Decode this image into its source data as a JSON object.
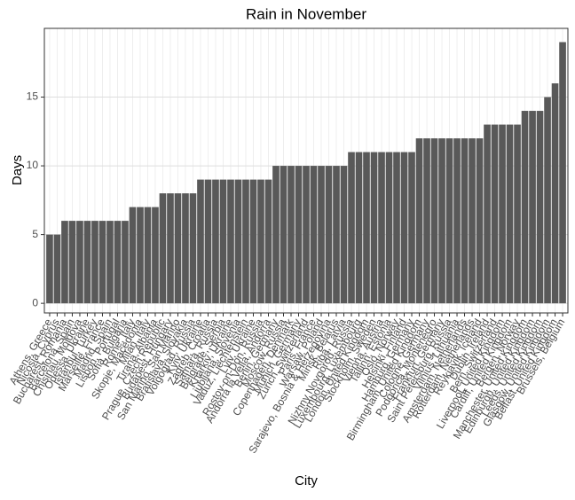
{
  "chart_data": {
    "type": "bar",
    "title": "Rain in November",
    "xlabel": "City",
    "ylabel": "Days",
    "categories": [
      "Athens, Greece",
      "Nicosia, Cyprus",
      "Bucharest, Romania",
      "Barcelona, Spain",
      "Chisinau, Moldova",
      "Odessa, Ukraine",
      "Istanbul, Turkey",
      "Marseille, France",
      "Madrid, Spain",
      "Lisbon, Portugal",
      "Sofia, Bulgaria",
      "Rome, Italy",
      "Skopje, Macedonia",
      "Milan, Italy",
      "Tirana, Albania",
      "Prague, Czech Republic",
      "Budapest, Hungary",
      "San Marino, San Marino",
      "Bratislava, Slovakia",
      "Volgograd, Russia",
      "Kyiv, Ukraine",
      "Zagreb, Croatia",
      "Samara, Russia",
      "Belgrade, Serbia",
      "Kharkiv, Ukraine",
      "Ljubljana, Slovenia",
      "Vaduz, Liechtenstein",
      "Lviv, Ukraine",
      "Rostov-on-Don, Russia",
      "Andorra la Vella, Andorra",
      "Berlin, Germany",
      "Moscow, Russia",
      "Copenhagen, Denmark",
      "Munich, Germany",
      "Zurich, Switzerland",
      "Paris, France",
      "Warsaw, Poland",
      "Sarajevo, Bosnia & Herzegovina",
      "Minsk, Belarus",
      "Riga, Latvia",
      "Nizhny Novgorod, Russia",
      "Luxembourg, Luxembourg",
      "London, United Kingdom",
      "Stockholm, Sweden",
      "Vienna, Austria",
      "Tallinn, Estonia",
      "Oslo, Norway",
      "Helsinki, Finland",
      "Hamburg, Germany",
      "Birmingham, United Kingdom",
      "Cologne, Germany",
      "Podgorica, Montenegro",
      "Frankfurt, Germany",
      "Saint Petersburg, Russia",
      "Vilnius, Lithuania",
      "Amsterdam, Netherlands",
      "Rotterdam, Netherlands",
      "Reykjavik, Iceland",
      "Dublin, Ireland",
      "Bern, Switzerland",
      "Liverpool, United Kingdom",
      "Cardiff, United Kingdom",
      "Bergen, Norway",
      "Manchester, United Kingdom",
      "Edinburgh, United Kingdom",
      "Leeds, United Kingdom",
      "Glasgow, United Kingdom",
      "Belfast, United Kingdom",
      "Brussels, Belgium"
    ],
    "values": [
      5,
      5,
      6,
      6,
      6,
      6,
      6,
      6,
      6,
      6,
      6,
      7,
      7,
      7,
      7,
      8,
      8,
      8,
      8,
      8,
      9,
      9,
      9,
      9,
      9,
      9,
      9,
      9,
      9,
      9,
      10,
      10,
      10,
      10,
      10,
      10,
      10,
      10,
      10,
      10,
      11,
      11,
      11,
      11,
      11,
      11,
      11,
      11,
      11,
      12,
      12,
      12,
      12,
      12,
      12,
      12,
      12,
      12,
      13,
      13,
      13,
      13,
      13,
      14,
      14,
      14,
      15,
      16,
      19
    ],
    "color": "#595959",
    "ylim": [
      -0.7,
      20
    ],
    "yticks": [
      0,
      5,
      10,
      15
    ],
    "grid": true
  }
}
